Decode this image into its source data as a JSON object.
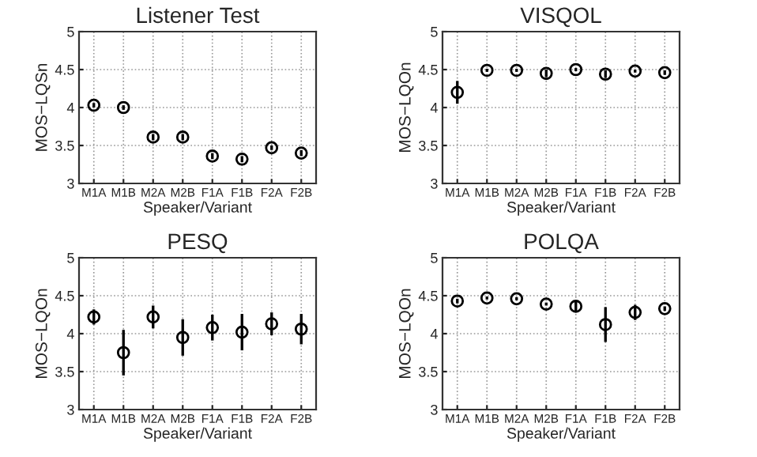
{
  "chart_data": [
    {
      "type": "scatter",
      "title": "Listener Test",
      "xlabel": "Speaker/Variant",
      "ylabel": "MOS−LQSn",
      "categories": [
        "M1A",
        "M1B",
        "M2A",
        "M2B",
        "F1A",
        "F1B",
        "F2A",
        "F2B"
      ],
      "values": [
        4.03,
        4.0,
        3.61,
        3.61,
        3.36,
        3.32,
        3.47,
        3.4
      ],
      "errors": [
        0.03,
        0.03,
        0.04,
        0.04,
        0.04,
        0.04,
        0.03,
        0.04
      ],
      "color": "#000000",
      "marker": "circle",
      "ylim": [
        3,
        5
      ],
      "yticks": [
        3,
        3.5,
        4,
        4.5,
        5
      ],
      "grid": true
    },
    {
      "type": "scatter",
      "title": "VISQOL",
      "xlabel": "Speaker/Variant",
      "ylabel": "MOS−LQOn",
      "categories": [
        "M1A",
        "M1B",
        "M2A",
        "M2B",
        "F1A",
        "F1B",
        "F2A",
        "F2B"
      ],
      "values": [
        4.2,
        4.49,
        4.49,
        4.45,
        4.5,
        4.44,
        4.48,
        4.46
      ],
      "errors": [
        0.15,
        0.02,
        0.02,
        0.05,
        0.02,
        0.05,
        0.02,
        0.03
      ],
      "color": "#000000",
      "marker": "circle",
      "ylim": [
        3,
        5
      ],
      "yticks": [
        3,
        3.5,
        4,
        4.5,
        5
      ],
      "grid": true
    },
    {
      "type": "scatter",
      "title": "PESQ",
      "xlabel": "Speaker/Variant",
      "ylabel": "MOS−LQOn",
      "categories": [
        "M1A",
        "M1B",
        "M2A",
        "M2B",
        "F1A",
        "F1B",
        "F2A",
        "F2B"
      ],
      "values": [
        4.22,
        3.75,
        4.22,
        3.95,
        4.08,
        4.02,
        4.13,
        4.06
      ],
      "errors": [
        0.1,
        0.3,
        0.15,
        0.24,
        0.17,
        0.24,
        0.15,
        0.2
      ],
      "color": "#000000",
      "marker": "circle",
      "ylim": [
        3,
        5
      ],
      "yticks": [
        3,
        3.5,
        4,
        4.5,
        5
      ],
      "grid": true
    },
    {
      "type": "scatter",
      "title": "POLQA",
      "xlabel": "Speaker/Variant",
      "ylabel": "MOS−LQOn",
      "categories": [
        "M1A",
        "M1B",
        "M2A",
        "M2B",
        "F1A",
        "F1B",
        "F2A",
        "F2B"
      ],
      "values": [
        4.43,
        4.47,
        4.46,
        4.39,
        4.36,
        4.12,
        4.28,
        4.33
      ],
      "errors": [
        0.03,
        0.02,
        0.02,
        0.02,
        0.06,
        0.23,
        0.1,
        0.03
      ],
      "color": "#000000",
      "marker": "circle",
      "ylim": [
        3,
        5
      ],
      "yticks": [
        3,
        3.5,
        4,
        4.5,
        5
      ],
      "grid": true
    }
  ]
}
